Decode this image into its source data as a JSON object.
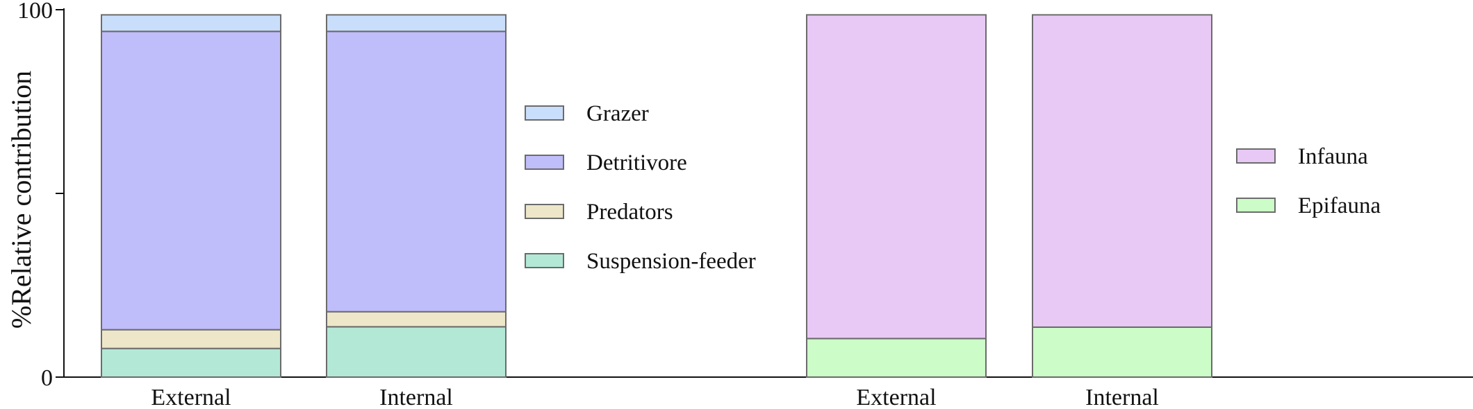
{
  "chart_data": {
    "type": "bar",
    "stacked": true,
    "ylabel": "%Relative contribution",
    "ylim": [
      0,
      100
    ],
    "yticks": [
      0,
      50,
      100
    ],
    "ytick_labels": [
      "0",
      "",
      "100"
    ],
    "groups": [
      {
        "categories": [
          "External",
          "Internal"
        ],
        "series": [
          {
            "name": "Suspension-feeder",
            "color": "#b3e8d6",
            "values": [
              7.8,
              13.7
            ]
          },
          {
            "name": "Predators",
            "color": "#ede6c8",
            "values": [
              5.1,
              4.1
            ]
          },
          {
            "name": "Detritivore",
            "color": "#c0bdfb",
            "values": [
              81.2,
              76.3
            ]
          },
          {
            "name": "Grazer",
            "color": "#c9defa",
            "values": [
              4.5,
              4.5
            ]
          }
        ],
        "legend_order": [
          "Grazer",
          "Detritivore",
          "Predators",
          "Suspension-feeder"
        ]
      },
      {
        "categories": [
          "External",
          "Internal"
        ],
        "series": [
          {
            "name": "Epifauna",
            "color": "#ccfcc7",
            "values": [
              10.5,
              13.6
            ]
          },
          {
            "name": "Infauna",
            "color": "#e8c9f5",
            "values": [
              88.1,
              85.0
            ]
          }
        ],
        "legend_order": [
          "Infauna",
          "Epifauna"
        ]
      }
    ],
    "colors": {
      "axis": "#111111",
      "bar_edge": "#6b6b6b"
    },
    "grid": false
  }
}
